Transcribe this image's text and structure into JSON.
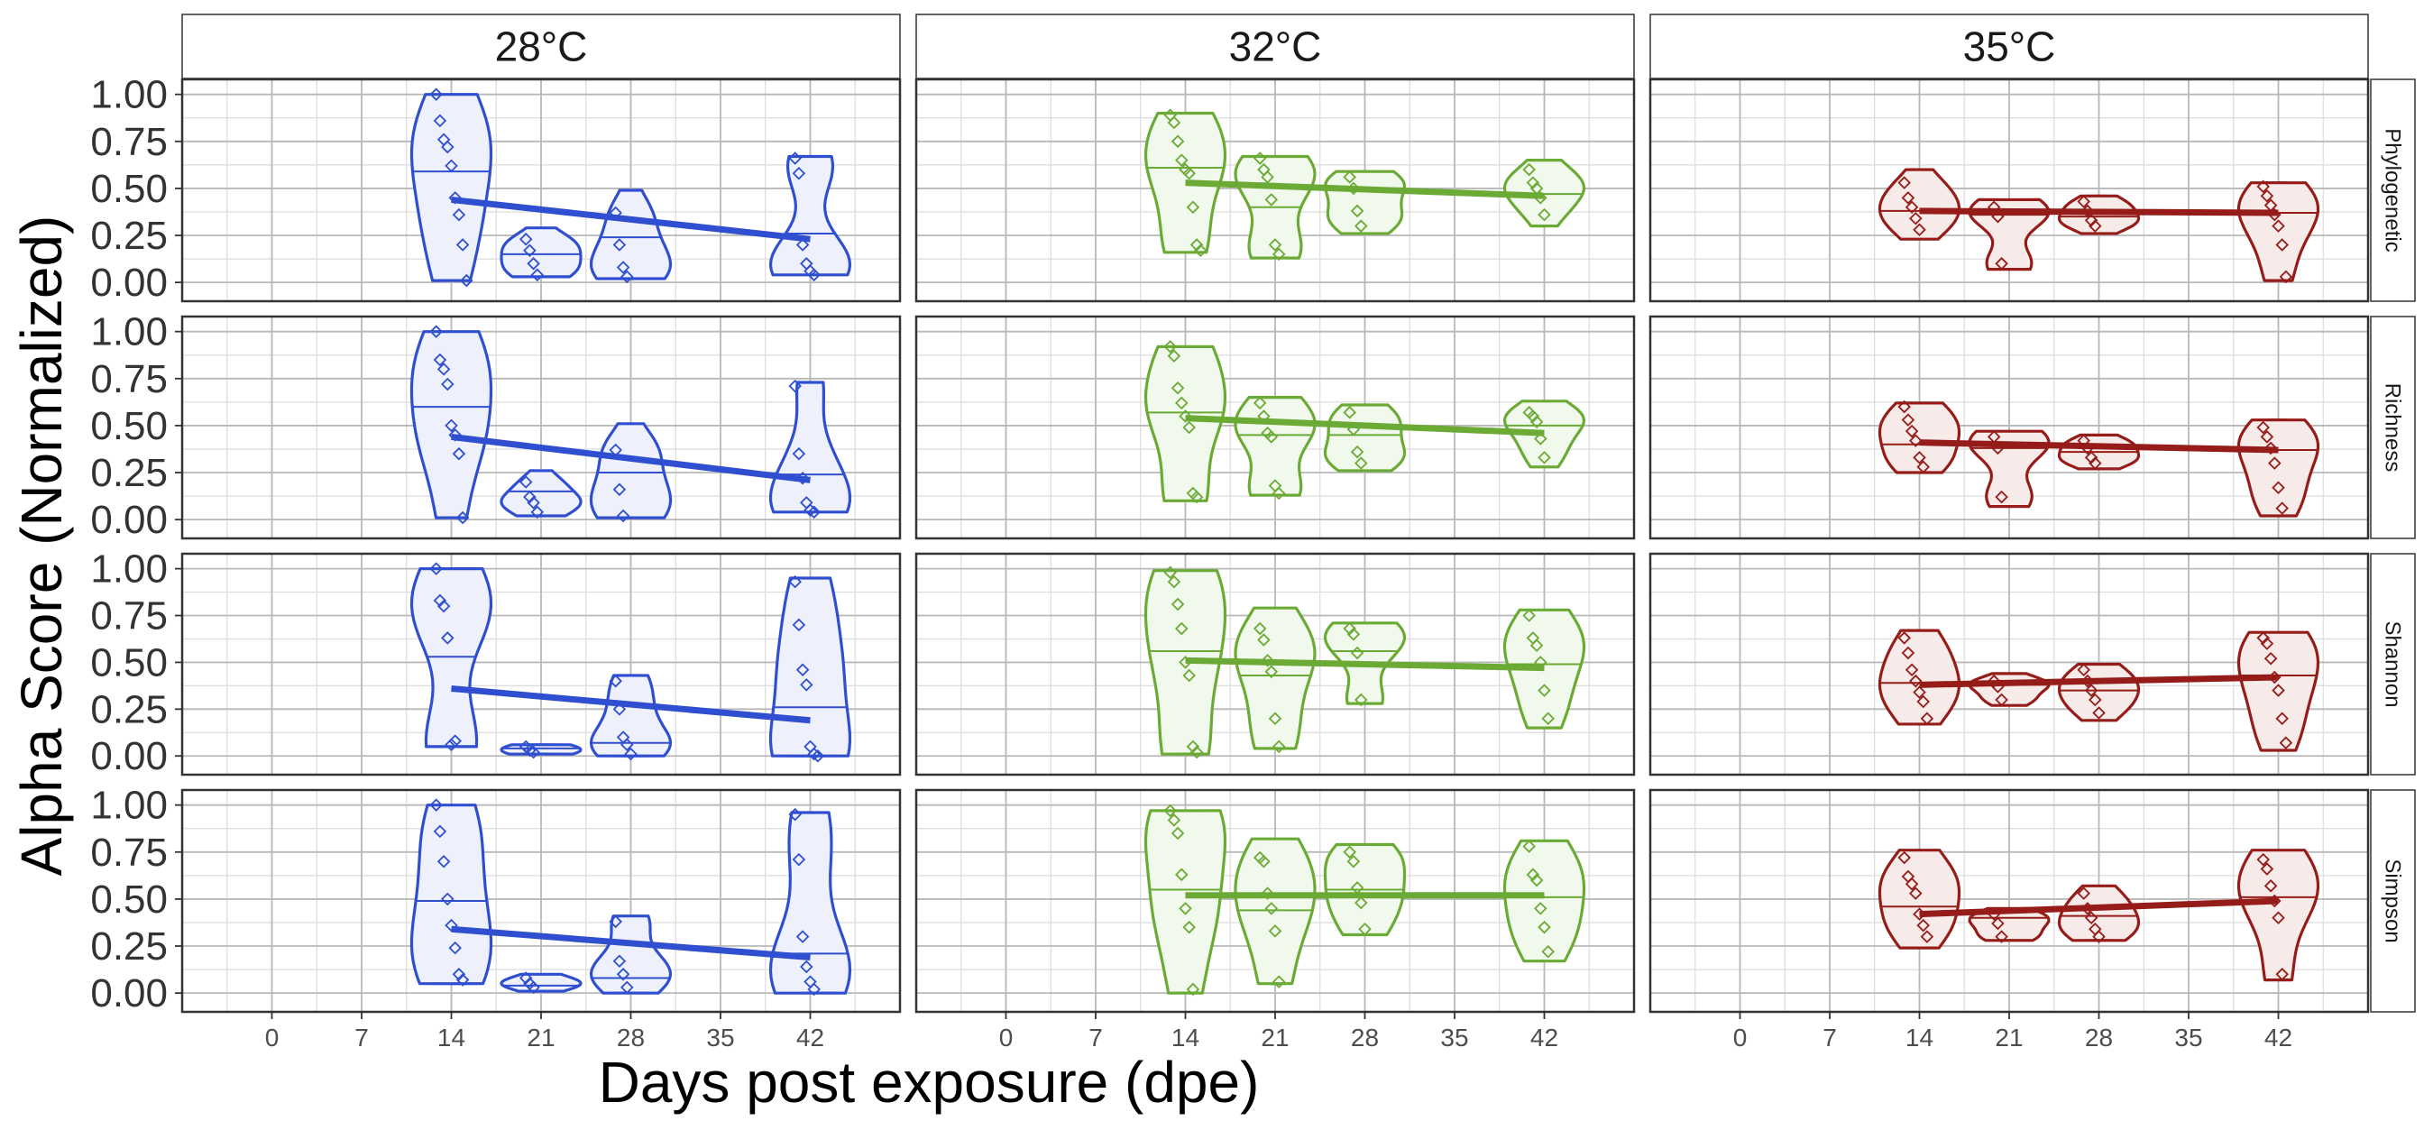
{
  "chart_data": {
    "type": "violin",
    "ylabel": "Alpha Score (Normalized)",
    "xlabel": "Days post exposure (dpe)",
    "x_ticks": [
      0,
      7,
      14,
      21,
      28,
      35,
      42
    ],
    "xlim": [
      -7,
      49
    ],
    "y_ticks": [
      "0.00",
      "0.25",
      "0.50",
      "0.75",
      "1.00"
    ],
    "ylim": [
      -0.1,
      1.08
    ],
    "columns": [
      {
        "label": "28°C",
        "color": "#2f4fd0",
        "fill": "#eef1fb"
      },
      {
        "label": "32°C",
        "color": "#6aaa35",
        "fill": "#f1f8ec"
      },
      {
        "label": "35°C",
        "color": "#951c18",
        "fill": "#f7ebea"
      }
    ],
    "rows": [
      "Phylogenetic",
      "Richness",
      "Shannon",
      "Simpson"
    ],
    "panels": [
      [
        {
          "violins": [
            {
              "x": 14,
              "min": 0.01,
              "max": 1.0,
              "median": 0.59,
              "points": [
                1.0,
                0.86,
                0.76,
                0.72,
                0.62,
                0.45,
                0.36,
                0.2,
                0.01
              ]
            },
            {
              "x": 21,
              "min": 0.03,
              "max": 0.29,
              "median": 0.15,
              "points": [
                0.23,
                0.17,
                0.1,
                0.04
              ]
            },
            {
              "x": 28,
              "min": 0.02,
              "max": 0.49,
              "median": 0.24,
              "points": [
                0.37,
                0.2,
                0.08,
                0.03
              ]
            },
            {
              "x": 42,
              "min": 0.04,
              "max": 0.67,
              "median": 0.26,
              "points": [
                0.66,
                0.58,
                0.2,
                0.1,
                0.06,
                0.04
              ]
            }
          ],
          "trend": [
            0.44,
            0.23
          ]
        },
        {
          "violins": [
            {
              "x": 14,
              "min": 0.01,
              "max": 1.0,
              "median": 0.6,
              "points": [
                1.0,
                0.85,
                0.8,
                0.72,
                0.5,
                0.45,
                0.35,
                0.01
              ]
            },
            {
              "x": 21,
              "min": 0.02,
              "max": 0.26,
              "median": 0.15,
              "points": [
                0.2,
                0.12,
                0.09,
                0.04
              ]
            },
            {
              "x": 28,
              "min": 0.01,
              "max": 0.51,
              "median": 0.25,
              "points": [
                0.37,
                0.16,
                0.02
              ]
            },
            {
              "x": 42,
              "min": 0.04,
              "max": 0.73,
              "median": 0.24,
              "points": [
                0.71,
                0.35,
                0.22,
                0.09,
                0.05,
                0.04
              ]
            }
          ],
          "trend": [
            0.44,
            0.21
          ]
        },
        {
          "violins": [
            {
              "x": 14,
              "min": 0.05,
              "max": 1.0,
              "median": 0.53,
              "points": [
                1.0,
                0.83,
                0.8,
                0.63,
                0.06,
                0.08
              ]
            },
            {
              "x": 21,
              "min": 0.01,
              "max": 0.06,
              "median": 0.04,
              "points": [
                0.05,
                0.03,
                0.02
              ]
            },
            {
              "x": 28,
              "min": 0.0,
              "max": 0.43,
              "median": 0.07,
              "points": [
                0.4,
                0.25,
                0.1,
                0.06,
                0.01
              ]
            },
            {
              "x": 42,
              "min": 0.0,
              "max": 0.95,
              "median": 0.26,
              "points": [
                0.93,
                0.7,
                0.46,
                0.38,
                0.05,
                0.01,
                0.0
              ]
            }
          ],
          "trend": [
            0.36,
            0.19
          ]
        },
        {
          "violins": [
            {
              "x": 14,
              "min": 0.05,
              "max": 1.0,
              "median": 0.49,
              "points": [
                1.0,
                0.86,
                0.7,
                0.5,
                0.36,
                0.24,
                0.1,
                0.07
              ]
            },
            {
              "x": 21,
              "min": 0.01,
              "max": 0.1,
              "median": 0.04,
              "points": [
                0.08,
                0.05,
                0.03
              ]
            },
            {
              "x": 28,
              "min": 0.0,
              "max": 0.41,
              "median": 0.08,
              "points": [
                0.38,
                0.17,
                0.1,
                0.03
              ]
            },
            {
              "x": 42,
              "min": 0.0,
              "max": 0.96,
              "median": 0.21,
              "points": [
                0.95,
                0.71,
                0.3,
                0.14,
                0.06,
                0.02
              ]
            }
          ],
          "trend": [
            0.34,
            0.19
          ]
        }
      ],
      [
        {
          "violins": [
            {
              "x": 14,
              "min": 0.16,
              "max": 0.9,
              "median": 0.61,
              "points": [
                0.89,
                0.85,
                0.75,
                0.65,
                0.6,
                0.58,
                0.4,
                0.2,
                0.17
              ]
            },
            {
              "x": 21,
              "min": 0.13,
              "max": 0.67,
              "median": 0.4,
              "points": [
                0.66,
                0.6,
                0.56,
                0.44,
                0.2,
                0.15
              ]
            },
            {
              "x": 28,
              "min": 0.26,
              "max": 0.59,
              "median": 0.5,
              "points": [
                0.56,
                0.5,
                0.38,
                0.3
              ]
            },
            {
              "x": 42,
              "min": 0.3,
              "max": 0.65,
              "median": 0.47,
              "points": [
                0.6,
                0.53,
                0.5,
                0.45,
                0.36
              ]
            }
          ],
          "trend": [
            0.53,
            0.46
          ]
        },
        {
          "violins": [
            {
              "x": 14,
              "min": 0.1,
              "max": 0.92,
              "median": 0.57,
              "points": [
                0.92,
                0.87,
                0.7,
                0.62,
                0.55,
                0.49,
                0.14,
                0.12
              ]
            },
            {
              "x": 21,
              "min": 0.13,
              "max": 0.65,
              "median": 0.45,
              "points": [
                0.62,
                0.55,
                0.46,
                0.44,
                0.18,
                0.14
              ]
            },
            {
              "x": 28,
              "min": 0.26,
              "max": 0.61,
              "median": 0.45,
              "points": [
                0.57,
                0.48,
                0.36,
                0.3
              ]
            },
            {
              "x": 42,
              "min": 0.28,
              "max": 0.63,
              "median": 0.5,
              "points": [
                0.57,
                0.55,
                0.52,
                0.43,
                0.33
              ]
            }
          ],
          "trend": [
            0.54,
            0.46
          ]
        },
        {
          "violins": [
            {
              "x": 14,
              "min": 0.01,
              "max": 0.99,
              "median": 0.56,
              "points": [
                0.98,
                0.93,
                0.81,
                0.68,
                0.5,
                0.43,
                0.05,
                0.02
              ]
            },
            {
              "x": 21,
              "min": 0.04,
              "max": 0.79,
              "median": 0.43,
              "points": [
                0.68,
                0.62,
                0.51,
                0.45,
                0.2,
                0.05
              ]
            },
            {
              "x": 28,
              "min": 0.28,
              "max": 0.71,
              "median": 0.56,
              "points": [
                0.68,
                0.65,
                0.55,
                0.3
              ]
            },
            {
              "x": 42,
              "min": 0.15,
              "max": 0.78,
              "median": 0.49,
              "points": [
                0.75,
                0.63,
                0.59,
                0.5,
                0.35,
                0.2
              ]
            }
          ],
          "trend": [
            0.51,
            0.47
          ]
        },
        {
          "violins": [
            {
              "x": 14,
              "min": 0.0,
              "max": 0.97,
              "median": 0.55,
              "points": [
                0.97,
                0.92,
                0.85,
                0.63,
                0.45,
                0.35,
                0.02
              ]
            },
            {
              "x": 21,
              "min": 0.05,
              "max": 0.82,
              "median": 0.44,
              "points": [
                0.72,
                0.7,
                0.53,
                0.45,
                0.33,
                0.06
              ]
            },
            {
              "x": 28,
              "min": 0.31,
              "max": 0.79,
              "median": 0.55,
              "points": [
                0.75,
                0.7,
                0.56,
                0.48,
                0.34
              ]
            },
            {
              "x": 42,
              "min": 0.17,
              "max": 0.81,
              "median": 0.51,
              "points": [
                0.78,
                0.63,
                0.6,
                0.45,
                0.35,
                0.22
              ]
            }
          ],
          "trend": [
            0.52,
            0.52
          ]
        }
      ],
      [
        {
          "violins": [
            {
              "x": 14,
              "min": 0.23,
              "max": 0.6,
              "median": 0.38,
              "points": [
                0.53,
                0.45,
                0.4,
                0.34,
                0.28
              ]
            },
            {
              "x": 21,
              "min": 0.07,
              "max": 0.44,
              "median": 0.36,
              "points": [
                0.4,
                0.35,
                0.1
              ]
            },
            {
              "x": 28,
              "min": 0.26,
              "max": 0.46,
              "median": 0.35,
              "points": [
                0.43,
                0.38,
                0.33,
                0.3
              ]
            },
            {
              "x": 42,
              "min": 0.01,
              "max": 0.53,
              "median": 0.37,
              "points": [
                0.51,
                0.46,
                0.41,
                0.36,
                0.3,
                0.2,
                0.03
              ]
            }
          ],
          "trend": [
            0.38,
            0.37
          ]
        },
        {
          "violins": [
            {
              "x": 14,
              "min": 0.25,
              "max": 0.62,
              "median": 0.4,
              "points": [
                0.6,
                0.53,
                0.47,
                0.42,
                0.33,
                0.28
              ]
            },
            {
              "x": 21,
              "min": 0.07,
              "max": 0.47,
              "median": 0.38,
              "points": [
                0.44,
                0.38,
                0.12
              ]
            },
            {
              "x": 28,
              "min": 0.27,
              "max": 0.45,
              "median": 0.36,
              "points": [
                0.42,
                0.38,
                0.33,
                0.3
              ]
            },
            {
              "x": 42,
              "min": 0.02,
              "max": 0.53,
              "median": 0.37,
              "points": [
                0.49,
                0.44,
                0.38,
                0.3,
                0.17,
                0.06
              ]
            }
          ],
          "trend": [
            0.41,
            0.37
          ]
        },
        {
          "violins": [
            {
              "x": 14,
              "min": 0.17,
              "max": 0.67,
              "median": 0.39,
              "points": [
                0.63,
                0.55,
                0.46,
                0.4,
                0.34,
                0.29,
                0.2
              ]
            },
            {
              "x": 21,
              "min": 0.27,
              "max": 0.44,
              "median": 0.38,
              "points": [
                0.4,
                0.37,
                0.3
              ]
            },
            {
              "x": 28,
              "min": 0.19,
              "max": 0.49,
              "median": 0.35,
              "points": [
                0.46,
                0.4,
                0.35,
                0.3,
                0.23
              ]
            },
            {
              "x": 42,
              "min": 0.03,
              "max": 0.66,
              "median": 0.43,
              "points": [
                0.63,
                0.6,
                0.52,
                0.42,
                0.35,
                0.2,
                0.07
              ]
            }
          ],
          "trend": [
            0.38,
            0.42
          ]
        },
        {
          "violins": [
            {
              "x": 14,
              "min": 0.24,
              "max": 0.76,
              "median": 0.46,
              "points": [
                0.72,
                0.62,
                0.58,
                0.53,
                0.42,
                0.36,
                0.3
              ]
            },
            {
              "x": 21,
              "min": 0.28,
              "max": 0.45,
              "median": 0.4,
              "points": [
                0.42,
                0.37,
                0.3
              ]
            },
            {
              "x": 28,
              "min": 0.28,
              "max": 0.57,
              "median": 0.41,
              "points": [
                0.53,
                0.45,
                0.4,
                0.34,
                0.3
              ]
            },
            {
              "x": 42,
              "min": 0.07,
              "max": 0.76,
              "median": 0.51,
              "points": [
                0.71,
                0.66,
                0.57,
                0.49,
                0.4,
                0.1
              ]
            }
          ],
          "trend": [
            0.42,
            0.49
          ]
        }
      ]
    ]
  }
}
